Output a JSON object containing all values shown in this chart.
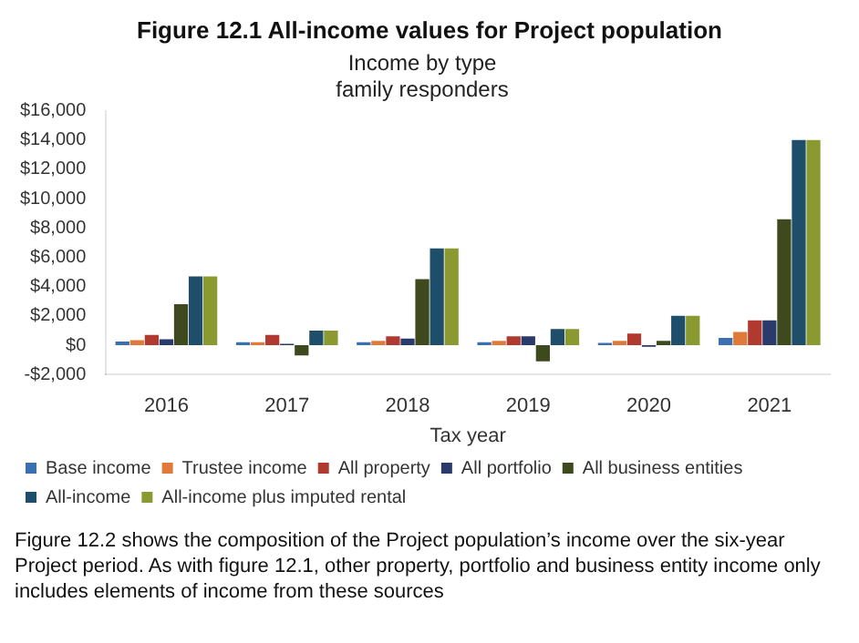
{
  "chart_data": {
    "type": "bar",
    "title": "Figure 12.1  All-income values for Project population",
    "subtitle": "Income by type\nfamily responders",
    "xlabel": "Tax year",
    "categories": [
      "2016",
      "2017",
      "2018",
      "2019",
      "2020",
      "2021"
    ],
    "series": [
      {
        "name": "Base income",
        "color": "#3a6fb0",
        "values": [
          250,
          200,
          200,
          200,
          150,
          500
        ]
      },
      {
        "name": "Trustee income",
        "color": "#e07a3a",
        "values": [
          350,
          200,
          300,
          300,
          300,
          900
        ]
      },
      {
        "name": "All property",
        "color": "#b03a30",
        "values": [
          700,
          700,
          600,
          600,
          800,
          1700
        ]
      },
      {
        "name": "All portfolio",
        "color": "#2a3a6a",
        "values": [
          400,
          100,
          450,
          600,
          -100,
          1700
        ]
      },
      {
        "name": "All business entities",
        "color": "#3e4a1e",
        "values": [
          2800,
          -700,
          4500,
          -1100,
          300,
          8600
        ]
      },
      {
        "name": "All-income",
        "color": "#1f4e6a",
        "values": [
          4700,
          1000,
          6600,
          1100,
          2000,
          14000
        ]
      },
      {
        "name": "All-income plus imputed rental",
        "color": "#8a9a30",
        "values": [
          4700,
          1000,
          6600,
          1100,
          2000,
          14000
        ]
      }
    ],
    "ylim": [
      -2000,
      16000
    ],
    "yticks": [
      {
        "value": -2000,
        "label": "-$2,000"
      },
      {
        "value": 0,
        "label": "$0"
      },
      {
        "value": 2000,
        "label": "$2,000"
      },
      {
        "value": 4000,
        "label": "$4,000"
      },
      {
        "value": 6000,
        "label": "$6,000"
      },
      {
        "value": 8000,
        "label": "$8,000"
      },
      {
        "value": 10000,
        "label": "$10,000"
      },
      {
        "value": 12000,
        "label": "$12,000"
      },
      {
        "value": 14000,
        "label": "$14,000"
      },
      {
        "value": 16000,
        "label": "$16,000"
      }
    ],
    "grid": false,
    "legend": "bottom",
    "annotations": [
      "Figure 12.2 shows the composition of the Project population’s income over the six-year Project period. As with figure 12.1, other property, portfolio and business entity income only includes elements of income from these sources"
    ]
  }
}
